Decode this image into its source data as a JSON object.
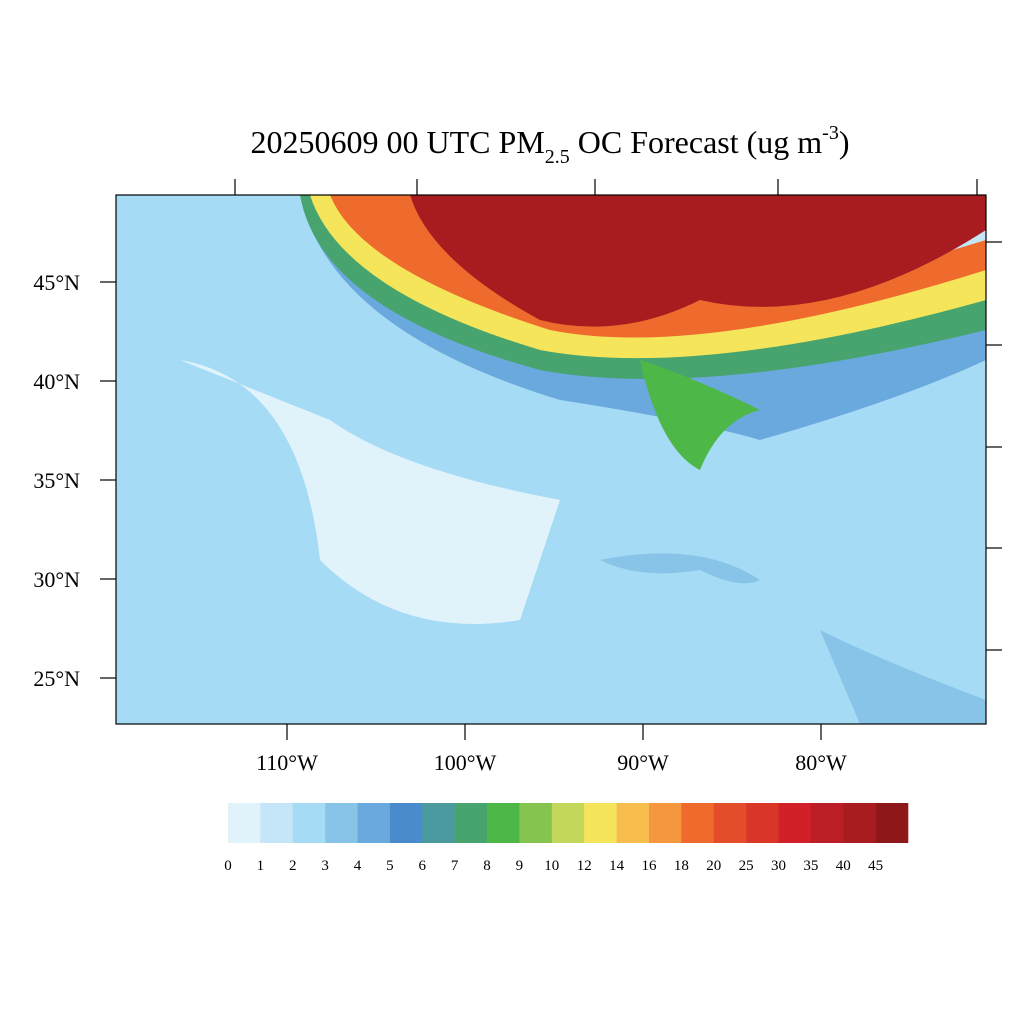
{
  "title_parts": [
    "20250609 00 UTC PM",
    "2.5",
    " OC Forecast (ug m",
    "-3",
    ")"
  ],
  "lat_ticks": [
    {
      "value": 45,
      "label": "45°N"
    },
    {
      "value": 40,
      "label": "40°N"
    },
    {
      "value": 35,
      "label": "35°N"
    },
    {
      "value": 30,
      "label": "30°N"
    },
    {
      "value": 25,
      "label": "25°N"
    }
  ],
  "lon_ticks": [
    {
      "value": -110,
      "label": "110°W"
    },
    {
      "value": -100,
      "label": "100°W"
    },
    {
      "value": -90,
      "label": "90°W"
    },
    {
      "value": -80,
      "label": "80°W"
    }
  ],
  "colorbar": {
    "levels": [
      0,
      1,
      2,
      3,
      4,
      5,
      6,
      7,
      8,
      9,
      10,
      12,
      14,
      16,
      18,
      20,
      25,
      30,
      35,
      40,
      45
    ],
    "colors": [
      "#e0f3fb",
      "#c4e6f8",
      "#a6dbf5",
      "#88c3e8",
      "#6aa9dd",
      "#4a8bcb",
      "#4b9aa0",
      "#48a46e",
      "#4db848",
      "#85c44f",
      "#c3d75b",
      "#f5e55b",
      "#f7be4d",
      "#f4973e",
      "#ef6b2d",
      "#e44d2a",
      "#d93627",
      "#d12028",
      "#bb1e24",
      "#a81c20",
      "#8e1719"
    ]
  }
}
